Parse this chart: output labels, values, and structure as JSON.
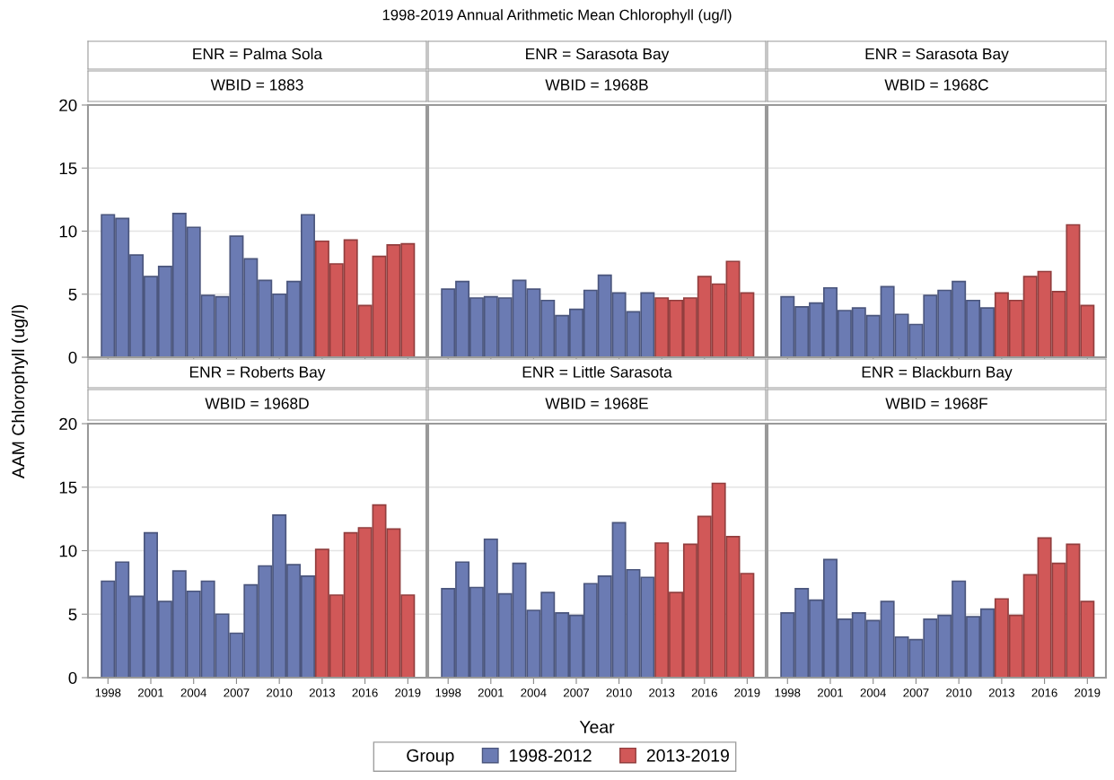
{
  "chart_data": [
    {
      "type": "bar",
      "title": "ENR = Palma Sola",
      "subtitle": "WBID = 1883",
      "annotations": [
        "1998-2019 Annual Arithmetic Mean Chlorophyll (ug/l)"
      ],
      "ylabel": "AAM Chlorophyll (ug/l)",
      "legend_title": "Group",
      "legend": "bottom",
      "grid": "y",
      "tick_labels": "y",
      "ylim": [
        0,
        20
      ],
      "yticks": [
        0,
        5,
        10,
        15,
        20
      ],
      "categories": [
        "1998",
        null,
        null,
        "2001",
        null,
        null,
        "2004",
        null,
        null,
        "2007",
        null,
        null,
        "2010",
        null,
        null,
        "2013",
        null,
        null,
        "2016",
        null,
        null,
        "2019"
      ],
      "series": [
        {
          "name": "1998-2012",
          "color": "#6b7bb3",
          "values": [
            11.3,
            11.0,
            8.1,
            6.4,
            7.2,
            11.4,
            10.3,
            4.9,
            4.8,
            9.6,
            7.8,
            6.1,
            5.0,
            6.0,
            11.3,
            null,
            null,
            null,
            null,
            null,
            null,
            null
          ]
        },
        {
          "name": "2013-2019",
          "color": "#d15858",
          "values": [
            null,
            null,
            null,
            null,
            null,
            null,
            null,
            null,
            null,
            null,
            null,
            null,
            null,
            null,
            null,
            9.2,
            7.4,
            9.3,
            4.1,
            8.0,
            8.9,
            9.0
          ]
        }
      ]
    },
    {
      "type": "bar",
      "title": "ENR = Sarasota Bay",
      "subtitle": "WBID = 1968B",
      "grid": "y",
      "tick_labels": false,
      "ylim": [
        0,
        20
      ],
      "yticks": [
        0,
        5,
        10,
        15,
        20
      ],
      "categories": [
        "1998",
        null,
        null,
        "2001",
        null,
        null,
        "2004",
        null,
        null,
        "2007",
        null,
        null,
        "2010",
        null,
        null,
        "2013",
        null,
        null,
        "2016",
        null,
        null,
        "2019"
      ],
      "series": [
        {
          "name": "1998-2012",
          "color": "#6b7bb3",
          "values": [
            5.4,
            6.0,
            4.7,
            4.8,
            4.7,
            6.1,
            5.4,
            4.5,
            3.3,
            3.8,
            5.3,
            6.5,
            5.1,
            3.6,
            5.1,
            null,
            null,
            null,
            null,
            null,
            null,
            null
          ]
        },
        {
          "name": "2013-2019",
          "color": "#d15858",
          "values": [
            null,
            null,
            null,
            null,
            null,
            null,
            null,
            null,
            null,
            null,
            null,
            null,
            null,
            null,
            null,
            4.7,
            4.5,
            4.7,
            6.4,
            5.8,
            7.6,
            5.1
          ]
        }
      ]
    },
    {
      "type": "bar",
      "title": "ENR = Sarasota Bay",
      "subtitle": "WBID = 1968C",
      "grid": "y",
      "tick_labels": false,
      "ylim": [
        0,
        20
      ],
      "yticks": [
        0,
        5,
        10,
        15,
        20
      ],
      "categories": [
        "1998",
        null,
        null,
        "2001",
        null,
        null,
        "2004",
        null,
        null,
        "2007",
        null,
        null,
        "2010",
        null,
        null,
        "2013",
        null,
        null,
        "2016",
        null,
        null,
        "2019"
      ],
      "series": [
        {
          "name": "1998-2012",
          "color": "#6b7bb3",
          "values": [
            4.8,
            4.0,
            4.3,
            5.5,
            3.7,
            3.9,
            3.3,
            5.6,
            3.4,
            2.6,
            4.9,
            5.3,
            6.0,
            4.5,
            3.9,
            null,
            null,
            null,
            null,
            null,
            null,
            null
          ]
        },
        {
          "name": "2013-2019",
          "color": "#d15858",
          "values": [
            null,
            null,
            null,
            null,
            null,
            null,
            null,
            null,
            null,
            null,
            null,
            null,
            null,
            null,
            null,
            5.1,
            4.5,
            6.4,
            6.8,
            5.2,
            10.5,
            4.1
          ]
        }
      ]
    },
    {
      "type": "bar",
      "title": "ENR = Roberts Bay",
      "subtitle": "WBID = 1968D",
      "grid": "y",
      "ylim": [
        0,
        20
      ],
      "yticks": [
        0,
        5,
        10,
        15,
        20
      ],
      "categories": [
        "1998",
        null,
        null,
        "2001",
        null,
        null,
        "2004",
        null,
        null,
        "2007",
        null,
        null,
        "2010",
        null,
        null,
        "2013",
        null,
        null,
        "2016",
        null,
        null,
        "2019"
      ],
      "series": [
        {
          "name": "1998-2012",
          "color": "#6b7bb3",
          "values": [
            7.6,
            9.1,
            6.4,
            11.4,
            6.0,
            8.4,
            6.8,
            7.6,
            5.0,
            3.5,
            7.3,
            8.8,
            12.8,
            8.9,
            8.0,
            null,
            null,
            null,
            null,
            null,
            null,
            null
          ]
        },
        {
          "name": "2013-2019",
          "color": "#d15858",
          "values": [
            null,
            null,
            null,
            null,
            null,
            null,
            null,
            null,
            null,
            null,
            null,
            null,
            null,
            null,
            null,
            10.1,
            6.5,
            11.4,
            11.8,
            13.6,
            11.7,
            6.5
          ]
        }
      ]
    },
    {
      "type": "bar",
      "title": "ENR = Little Sarasota",
      "subtitle": "WBID = 1968E",
      "xlabel": "Year",
      "grid": "y",
      "tick_labels": "x",
      "ylim": [
        0,
        20
      ],
      "yticks": [
        0,
        5,
        10,
        15,
        20
      ],
      "categories": [
        "1998",
        null,
        null,
        "2001",
        null,
        null,
        "2004",
        null,
        null,
        "2007",
        null,
        null,
        "2010",
        null,
        null,
        "2013",
        null,
        null,
        "2016",
        null,
        null,
        "2019"
      ],
      "series": [
        {
          "name": "1998-2012",
          "color": "#6b7bb3",
          "values": [
            7.0,
            9.1,
            7.1,
            10.9,
            6.6,
            9.0,
            5.3,
            6.7,
            5.1,
            4.9,
            7.4,
            8.0,
            12.2,
            8.5,
            7.9,
            null,
            null,
            null,
            null,
            null,
            null,
            null
          ]
        },
        {
          "name": "2013-2019",
          "color": "#d15858",
          "values": [
            null,
            null,
            null,
            null,
            null,
            null,
            null,
            null,
            null,
            null,
            null,
            null,
            null,
            null,
            null,
            10.6,
            6.7,
            10.5,
            12.7,
            15.3,
            11.1,
            8.2
          ]
        }
      ]
    },
    {
      "type": "bar",
      "title": "ENR = Blackburn Bay",
      "subtitle": "WBID = 1968F",
      "grid": "y",
      "tick_labels": "x",
      "ylim": [
        0,
        20
      ],
      "yticks": [
        0,
        5,
        10,
        15,
        20
      ],
      "categories": [
        "1998",
        null,
        null,
        "2001",
        null,
        null,
        "2004",
        null,
        null,
        "2007",
        null,
        null,
        "2010",
        null,
        null,
        "2013",
        null,
        null,
        "2016",
        null,
        null,
        "2019"
      ],
      "series": [
        {
          "name": "1998-2012",
          "color": "#6b7bb3",
          "values": [
            5.1,
            7.0,
            6.1,
            9.3,
            4.6,
            5.1,
            4.5,
            6.0,
            3.2,
            3.0,
            4.6,
            4.9,
            7.6,
            4.8,
            5.4,
            null,
            null,
            null,
            null,
            null,
            null,
            null
          ]
        },
        {
          "name": "2013-2019",
          "color": "#d15858",
          "values": [
            null,
            null,
            null,
            null,
            null,
            null,
            null,
            null,
            null,
            null,
            null,
            null,
            null,
            null,
            null,
            6.2,
            4.9,
            8.1,
            11.0,
            9.0,
            10.5,
            6.0
          ]
        }
      ]
    }
  ]
}
